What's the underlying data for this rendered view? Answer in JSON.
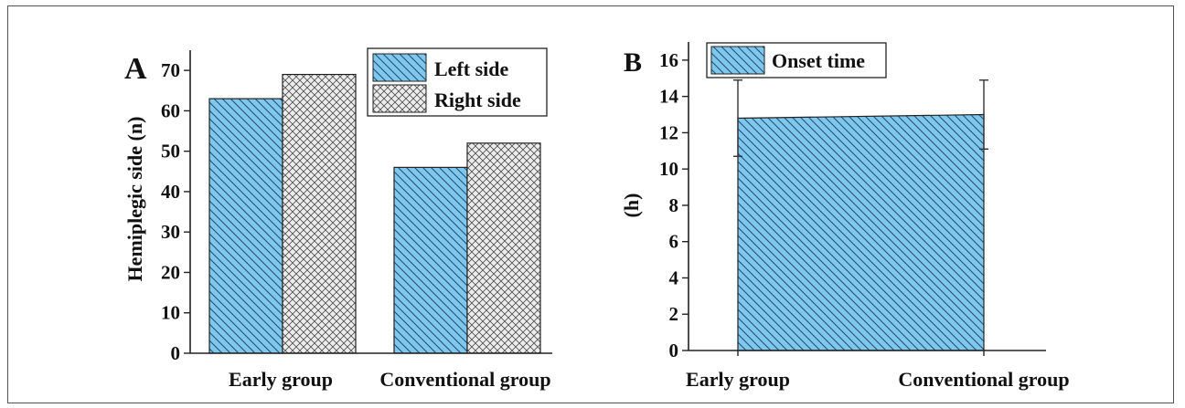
{
  "figure": {
    "panels": [
      "A",
      "B"
    ]
  },
  "chart_data": [
    {
      "panel": "A",
      "type": "bar",
      "categories": [
        "Early group",
        "Conventional group"
      ],
      "series": [
        {
          "name": "Left side",
          "values": [
            63,
            46
          ],
          "color": "#7EC8EC",
          "pattern": "diagonal-hatch"
        },
        {
          "name": "Right side",
          "values": [
            69,
            52
          ],
          "color": "#E8E8E8",
          "pattern": "crosshatch"
        }
      ],
      "ylabel": "Hemiplegic side (n)",
      "xlabel": "",
      "ylim": [
        0,
        75
      ],
      "yticks": [
        0,
        10,
        20,
        30,
        40,
        50,
        60,
        70
      ],
      "legend": "top-right",
      "grid": false
    },
    {
      "panel": "B",
      "type": "area",
      "x": [
        "Early group",
        "Conventional group"
      ],
      "series": [
        {
          "name": "Onset time",
          "values": [
            12.8,
            13.0
          ],
          "error": [
            2.1,
            1.9
          ],
          "color": "#7EC8EC",
          "pattern": "diagonal-hatch"
        }
      ],
      "ylabel": "(h)",
      "xlabel": "",
      "ylim": [
        0,
        17
      ],
      "yticks": [
        0,
        2,
        4,
        6,
        8,
        10,
        12,
        14,
        16
      ],
      "legend": "top-left",
      "grid": false
    }
  ]
}
